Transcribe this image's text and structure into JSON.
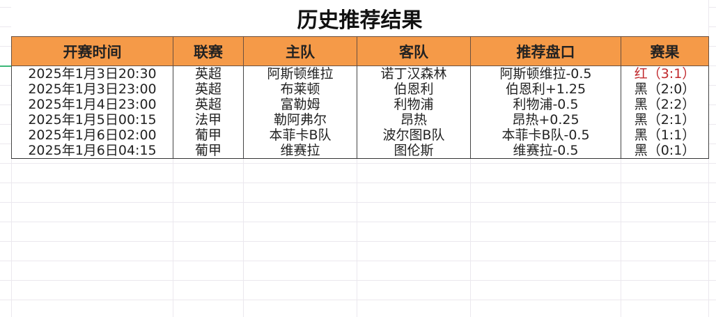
{
  "title": "历史推荐结果",
  "headers": [
    "开赛时间",
    "联赛",
    "主队",
    "客队",
    "推荐盘口",
    "赛果"
  ],
  "rows": [
    [
      "2025年1月3日20:30",
      "英超",
      "阿斯顿维拉",
      "诺丁汉森林",
      "阿斯顿维拉-0.5",
      "红（3:1）"
    ],
    [
      "2025年1月3日23:00",
      "英超",
      "布莱顿",
      "伯恩利",
      "伯恩利+1.25",
      "黑（2:0）"
    ],
    [
      "2025年1月4日23:00",
      "英超",
      "富勒姆",
      "利物浦",
      "利物浦-0.5",
      "黑（2:2）"
    ],
    [
      "2025年1月5日00:15",
      "法甲",
      "勒阿弗尔",
      "昂热",
      "昂热+0.25",
      "黑（2:1）"
    ],
    [
      "2025年1月6日02:00",
      "葡甲",
      "本菲卡B队",
      "波尔图B队",
      "本菲卡B队-0.5",
      "黑（1:1）"
    ],
    [
      "2025年1月6日04:15",
      "葡甲",
      "维赛拉",
      "图伦斯",
      "维赛拉-0.5",
      "黑（0:1）"
    ]
  ],
  "colors": {
    "header_bg": "#f59a48",
    "win": "#c0282c",
    "loss": "#222222"
  }
}
